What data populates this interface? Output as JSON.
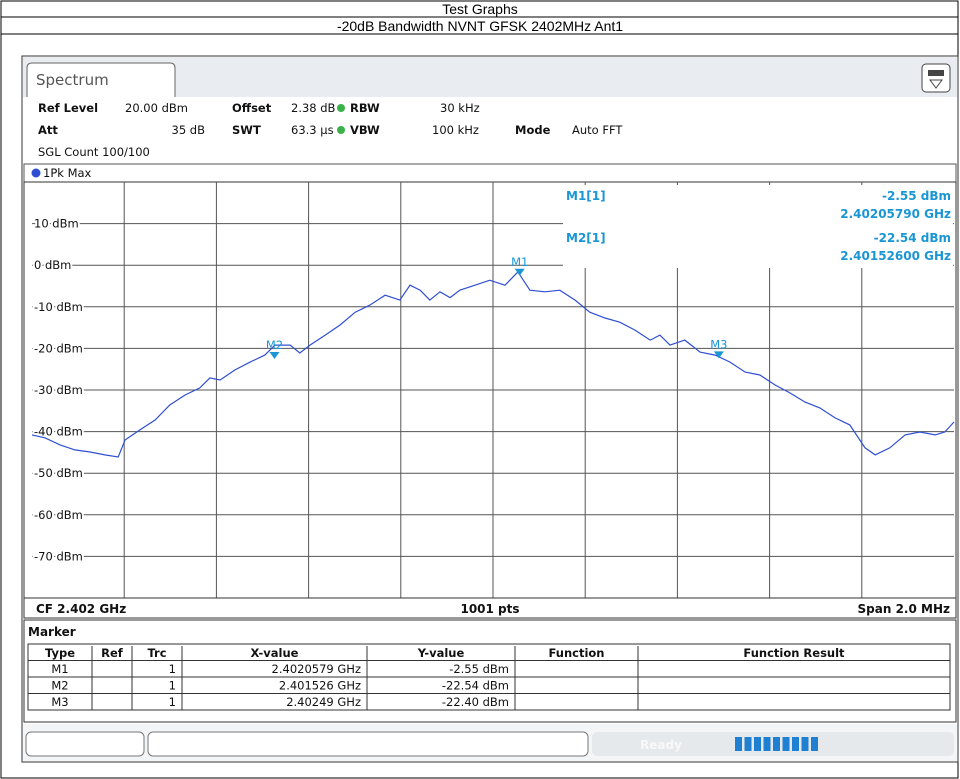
{
  "header": {
    "title": "Test Graphs",
    "subtitle": "-20dB Bandwidth NVNT GFSK 2402MHz Ant1"
  },
  "tab": "Spectrum",
  "settings": {
    "ref_level": [
      "Ref Level",
      "20.00 dBm"
    ],
    "offset": [
      "Offset",
      "2.38 dB"
    ],
    "rbw": [
      "RBW",
      "30 kHz"
    ],
    "att": [
      "Att",
      "35 dB"
    ],
    "swt": [
      "SWT",
      "63.3 µs"
    ],
    "vbw": [
      "VBW",
      "100 kHz"
    ],
    "mode": [
      "Mode",
      "Auto FFT"
    ],
    "count": "SGL Count 100/100"
  },
  "chart_data": {
    "type": "line",
    "x": [
      2.401,
      2.401028,
      2.401061,
      2.401093,
      2.401126,
      2.401158,
      2.401187,
      2.401202,
      2.401234,
      2.401267,
      2.401299,
      2.401332,
      2.401364,
      2.401386,
      2.401408,
      2.40144,
      2.401473,
      2.401505,
      2.401527,
      2.40156,
      2.401581,
      2.401603,
      2.401636,
      2.401668,
      2.401701,
      2.401733,
      2.401766,
      2.401798,
      2.40182,
      2.401842,
      2.401863,
      2.401885,
      2.401907,
      2.401928,
      2.401961,
      2.401993,
      2.402026,
      2.402054,
      2.40208,
      2.402113,
      2.402145,
      2.402178,
      2.40221,
      2.402243,
      2.402275,
      2.402308,
      2.402341,
      2.402362,
      2.402384,
      2.402416,
      2.402449,
      2.402482,
      2.402514,
      2.402547,
      2.402579,
      2.402612,
      2.402644,
      2.402677,
      2.402709,
      2.402742,
      2.402774,
      2.402807,
      2.402829,
      2.402861,
      2.402894,
      2.402926,
      2.402959,
      2.40298,
      2.403
    ],
    "series": [
      {
        "name": "1Pk Max",
        "color": "#2f4fd2",
        "values": [
          -40.8,
          -41.5,
          -43.2,
          -44.4,
          -44.9,
          -45.6,
          -46.1,
          -42.0,
          -39.6,
          -37.2,
          -33.6,
          -31.2,
          -29.5,
          -27.1,
          -27.6,
          -25.2,
          -23.3,
          -21.6,
          -19.2,
          -19.2,
          -21.1,
          -19.2,
          -16.8,
          -14.4,
          -11.3,
          -9.6,
          -7.2,
          -8.4,
          -4.8,
          -6.0,
          -8.4,
          -6.4,
          -7.8,
          -6.0,
          -4.8,
          -3.6,
          -4.8,
          -1.6,
          -6.0,
          -6.4,
          -6.0,
          -8.4,
          -11.3,
          -12.7,
          -13.7,
          -15.6,
          -18.0,
          -16.8,
          -19.2,
          -18.0,
          -20.9,
          -21.6,
          -23.3,
          -25.7,
          -26.4,
          -28.8,
          -30.7,
          -32.9,
          -34.3,
          -36.7,
          -38.4,
          -43.9,
          -45.6,
          -43.9,
          -40.8,
          -40.1,
          -40.8,
          -40.1,
          -37.7
        ]
      }
    ],
    "xlim": [
      2.401,
      2.403
    ],
    "ylim": [
      -80,
      20
    ],
    "yticks": [
      {
        "value": 10,
        "label": "10 dBm"
      },
      {
        "value": 0,
        "label": "0 dBm"
      },
      {
        "value": -10,
        "label": "-10 dBm"
      },
      {
        "value": -20,
        "label": "-20 dBm"
      },
      {
        "value": -30,
        "label": "-30 dBm"
      },
      {
        "value": -40,
        "label": "-40 dBm"
      },
      {
        "value": -50,
        "label": "-50 dBm"
      },
      {
        "value": -60,
        "label": "-60 dBm"
      },
      {
        "value": -70,
        "label": "-70 dBm"
      }
    ],
    "grid": true,
    "markers": [
      {
        "label": "M1",
        "x": 2.4020579,
        "y": -2.55
      },
      {
        "label": "M2",
        "x": 2.401526,
        "y": -22.54
      },
      {
        "label": "M3",
        "x": 2.40249,
        "y": -22.4
      }
    ],
    "marker_info": [
      {
        "name": "M1[1]",
        "level": "-2.55 dBm",
        "freq": "2.40205790 GHz"
      },
      {
        "name": "M2[1]",
        "level": "-22.54 dBm",
        "freq": "2.40152600 GHz"
      }
    ],
    "footer": {
      "center_freq": "CF 2.402 GHz",
      "points": "1001 pts",
      "span": "Span 2.0 MHz"
    }
  },
  "marker_table": {
    "title": "Marker",
    "columns": [
      "Type",
      "Ref",
      "Trc",
      "X-value",
      "Y-value",
      "Function",
      "Function Result"
    ],
    "rows": [
      [
        "M1",
        "",
        "1",
        "2.4020579 GHz",
        "-2.55 dBm",
        "",
        ""
      ],
      [
        "M2",
        "",
        "1",
        "2.401526 GHz",
        "-22.54 dBm",
        "",
        ""
      ],
      [
        "M3",
        "",
        "1",
        "2.40249 GHz",
        "-22.40 dBm",
        "",
        ""
      ]
    ]
  },
  "status": "Ready"
}
